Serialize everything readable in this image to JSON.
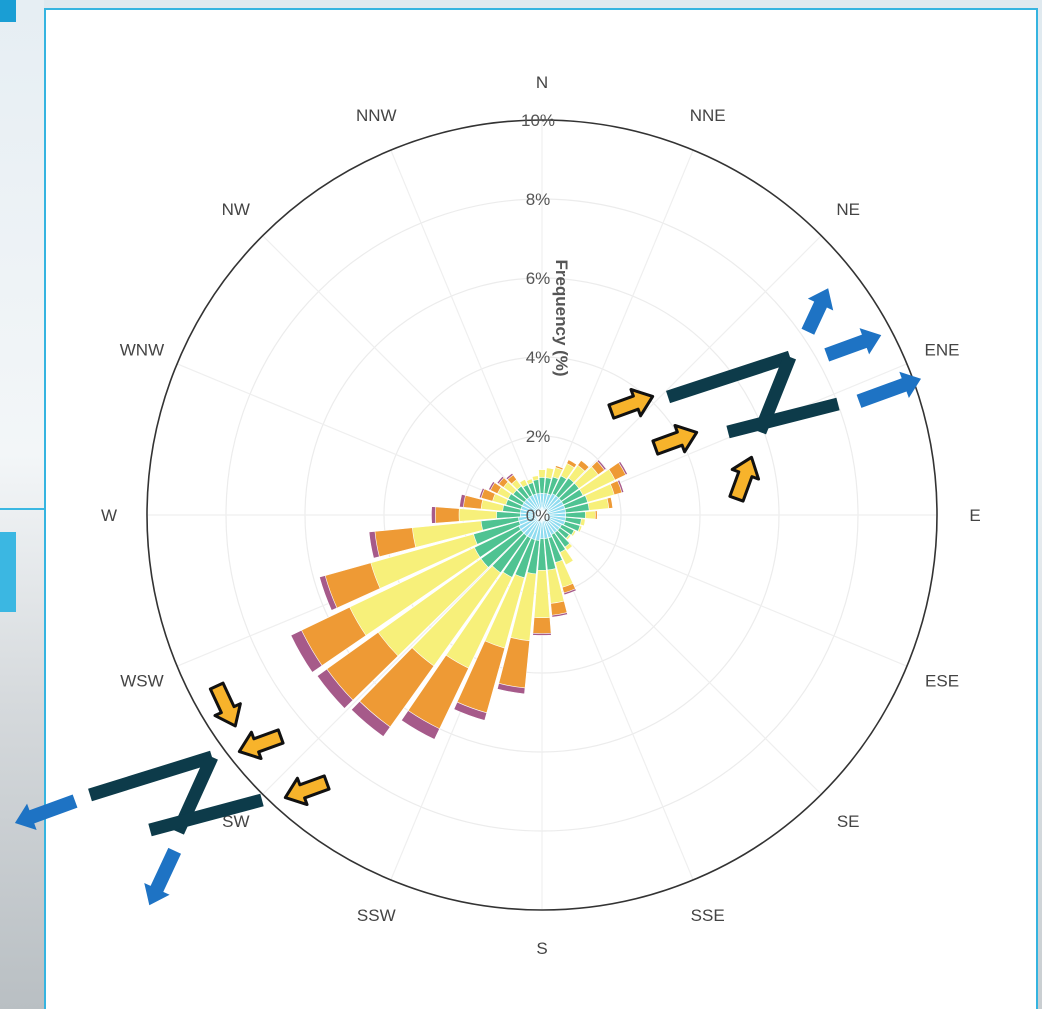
{
  "chart_data": {
    "type": "windrose",
    "directions": [
      "N",
      "NNE",
      "NE",
      "ENE",
      "E",
      "ESE",
      "SE",
      "SSE",
      "S",
      "SSW",
      "SW",
      "WSW",
      "W",
      "WNW",
      "NW",
      "NNW"
    ],
    "bins_per_direction": 36,
    "radial_axis": {
      "title": "Frequency (%)",
      "ticks": [
        "0%",
        "2%",
        "4%",
        "6%",
        "8%",
        "10%"
      ],
      "range": [
        0,
        10
      ]
    },
    "speed_classes": [
      {
        "color": "#8fdcf0"
      },
      {
        "color": "#4fc392"
      },
      {
        "color": "#f7f07a"
      },
      {
        "color": "#ee9a35"
      },
      {
        "color": "#a65a8a"
      }
    ],
    "sector_angles_deg": [
      0,
      10,
      20,
      30,
      40,
      50,
      60,
      70,
      80,
      90,
      100,
      110,
      120,
      130,
      140,
      150,
      160,
      170,
      180,
      190,
      200,
      210,
      220,
      230,
      240,
      250,
      260,
      270,
      280,
      290,
      300,
      310,
      320,
      330,
      340,
      350
    ],
    "cumulative_freq_pct": [
      [
        0.55,
        0.95,
        1.15,
        1.15,
        1.15
      ],
      [
        0.55,
        0.95,
        1.2,
        1.2,
        1.2
      ],
      [
        0.55,
        1.0,
        1.25,
        1.3,
        1.3
      ],
      [
        0.6,
        1.1,
        1.45,
        1.55,
        1.55
      ],
      [
        0.6,
        1.15,
        1.55,
        1.7,
        1.7
      ],
      [
        0.6,
        1.15,
        1.75,
        1.95,
        2.0
      ],
      [
        0.6,
        1.15,
        2.05,
        2.35,
        2.4
      ],
      [
        0.6,
        1.2,
        1.9,
        2.1,
        2.15
      ],
      [
        0.6,
        1.2,
        1.7,
        1.8,
        1.8
      ],
      [
        0.6,
        1.1,
        1.35,
        1.4,
        1.4
      ],
      [
        0.6,
        1.0,
        1.1,
        1.1,
        1.1
      ],
      [
        0.6,
        1.0,
        1.05,
        1.05,
        1.05
      ],
      [
        0.55,
        0.9,
        0.95,
        0.95,
        0.95
      ],
      [
        0.55,
        0.85,
        0.9,
        0.9,
        0.9
      ],
      [
        0.55,
        1.0,
        1.1,
        1.1,
        1.1
      ],
      [
        0.55,
        1.05,
        1.4,
        1.4,
        1.4
      ],
      [
        0.6,
        1.25,
        1.9,
        2.05,
        2.1
      ],
      [
        0.6,
        1.4,
        2.25,
        2.55,
        2.6
      ],
      [
        0.6,
        1.4,
        2.6,
        3.0,
        3.05
      ],
      [
        0.65,
        1.5,
        3.2,
        4.4,
        4.55
      ],
      [
        0.65,
        1.65,
        3.5,
        5.2,
        5.4
      ],
      [
        0.65,
        1.75,
        4.3,
        6.0,
        6.3
      ],
      [
        0.65,
        1.8,
        4.7,
        6.6,
        6.9
      ],
      [
        0.65,
        1.9,
        5.1,
        6.7,
        7.0
      ],
      [
        0.65,
        1.9,
        5.4,
        6.75,
        7.05
      ],
      [
        0.6,
        1.8,
        4.5,
        5.7,
        5.85
      ],
      [
        0.6,
        1.55,
        3.3,
        4.25,
        4.4
      ],
      [
        0.55,
        1.15,
        2.1,
        2.7,
        2.8
      ],
      [
        0.55,
        1.0,
        1.55,
        2.0,
        2.1
      ],
      [
        0.55,
        0.95,
        1.3,
        1.6,
        1.65
      ],
      [
        0.55,
        0.95,
        1.25,
        1.45,
        1.5
      ],
      [
        0.55,
        0.9,
        1.2,
        1.35,
        1.4
      ],
      [
        0.55,
        0.9,
        1.1,
        1.25,
        1.3
      ],
      [
        0.55,
        0.85,
        1.0,
        1.0,
        1.0
      ],
      [
        0.55,
        0.85,
        0.95,
        0.95,
        0.95
      ],
      [
        0.55,
        0.9,
        1.0,
        1.0,
        1.0
      ]
    ]
  },
  "annotation_colors": {
    "runway": "#0d3b4a",
    "arrow_in": "#f7b32b",
    "arrow_out": "#1e73c4",
    "outline": "#111111"
  },
  "annotations": [
    {
      "type": "runway-marker",
      "location": "NE",
      "label": ""
    },
    {
      "type": "runway-marker",
      "location": "SW",
      "label": ""
    }
  ]
}
